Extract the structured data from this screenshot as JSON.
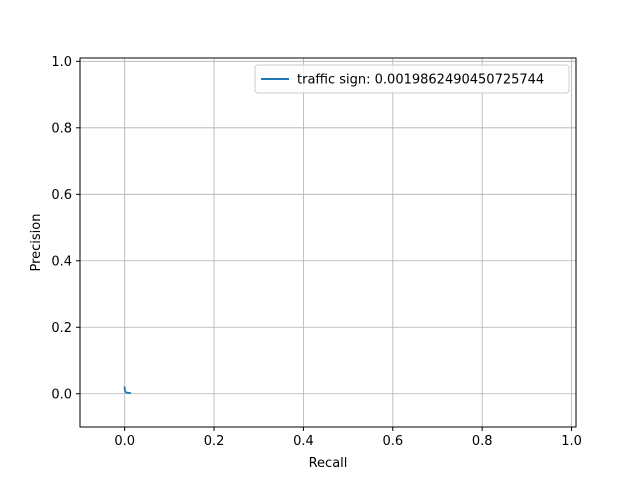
{
  "chart_data": {
    "type": "line",
    "xlabel": "Recall",
    "ylabel": "Precision",
    "xlim": [
      -0.1,
      1.01
    ],
    "ylim": [
      -0.1,
      1.01
    ],
    "xticks": [
      0.0,
      0.2,
      0.4,
      0.6,
      0.8,
      1.0
    ],
    "yticks": [
      0.0,
      0.2,
      0.4,
      0.6,
      0.8,
      1.0
    ],
    "tick_labels_x": [
      "0.0",
      "0.2",
      "0.4",
      "0.6",
      "0.8",
      "1.0"
    ],
    "tick_labels_y": [
      "0.0",
      "0.2",
      "0.4",
      "0.6",
      "0.8",
      "1.0"
    ],
    "grid": true,
    "legend_position": "top-right",
    "series": [
      {
        "name": "traffic sign: 0.0019862490450725744",
        "color": "#1f77b4",
        "x": [
          0.0,
          0.0,
          0.001,
          0.002,
          0.004,
          0.006,
          0.009,
          0.012,
          0.014
        ],
        "y": [
          0.022,
          0.012,
          0.008,
          0.005,
          0.004,
          0.003,
          0.003,
          0.002,
          0.002
        ]
      }
    ]
  }
}
